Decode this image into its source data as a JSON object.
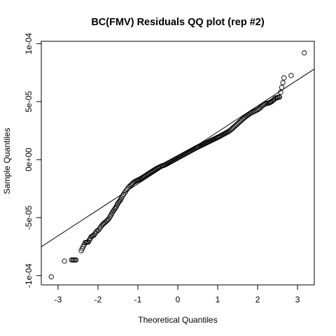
{
  "chart_data": {
    "type": "scatter",
    "title": "BC(FMV) Residuals QQ plot (rep #2)",
    "xlabel": "Theoretical Quantiles",
    "ylabel": "Sample Quantiles",
    "xlim": [
      -3.42,
      3.42
    ],
    "ylim": [
      -0.000108,
      0.000102
    ],
    "xticks": [
      -3,
      -2,
      -1,
      0,
      1,
      2,
      3
    ],
    "xtick_labels": [
      "-3",
      "-2",
      "-1",
      "0",
      "1",
      "2",
      "3"
    ],
    "yticks": [
      -0.0001,
      -5e-05,
      0,
      5e-05,
      0.0001
    ],
    "ytick_labels": [
      "-1e-04",
      "-5e-05",
      "0e+00",
      "5e-05",
      "1e-04"
    ],
    "grid": false,
    "series": [
      {
        "x": [
          -3.17,
          -2.84,
          -2.66,
          -2.55,
          -2.42,
          -2.32,
          -2.24,
          -2.17,
          -2.1,
          -2.04,
          -1.98,
          -1.92,
          -1.87,
          -1.82,
          -1.77,
          -1.72,
          -1.67,
          -1.63,
          -1.58,
          -1.54,
          -1.5,
          -1.45,
          -1.41,
          -1.36,
          -1.3,
          -1.24,
          -1.18,
          -1.1,
          -1.02,
          -0.93,
          -0.84,
          -0.75,
          -0.66,
          -0.57,
          -0.48,
          -0.4,
          -0.32,
          -0.24,
          -0.16,
          -0.08,
          0.0,
          0.08,
          0.16,
          0.24,
          0.32,
          0.4,
          0.48,
          0.57,
          0.66,
          0.75,
          0.84,
          0.93,
          1.02,
          1.1,
          1.18,
          1.26,
          1.34,
          1.42,
          1.5,
          1.58,
          1.66,
          1.74,
          1.82,
          1.88,
          1.94,
          2.0,
          2.06,
          2.12,
          2.18,
          2.24,
          2.3,
          2.37,
          2.45,
          2.55,
          2.66,
          2.84,
          3.17
        ],
        "y": [
          -0.000101,
          -8.75e-05,
          -8.65e-05,
          -8.65e-05,
          -7.85e-05,
          -7.15e-05,
          -7.1e-05,
          -6.65e-05,
          -6.5e-05,
          -6.2e-05,
          -6.05e-05,
          -5.75e-05,
          -5.55e-05,
          -5.4e-05,
          -5.25e-05,
          -5.05e-05,
          -4.75e-05,
          -4.5e-05,
          -4.25e-05,
          -4.05e-05,
          -3.75e-05,
          -3.55e-05,
          -3.3e-05,
          -3e-05,
          -2.7e-05,
          -2.4e-05,
          -2.2e-05,
          -1.95e-05,
          -1.8e-05,
          -1.65e-05,
          -1.45e-05,
          -1.25e-05,
          -1.05e-05,
          -8.5e-06,
          -6.8e-06,
          -5.5e-06,
          -4.5e-06,
          -3e-06,
          -1.5e-06,
          0.0,
          1.5e-06,
          3e-06,
          4.5e-06,
          6e-06,
          7.5e-06,
          9e-06,
          1.05e-05,
          1.2e-05,
          1.35e-05,
          1.5e-05,
          1.65e-05,
          1.8e-05,
          1.95e-05,
          2.1e-05,
          2.25e-05,
          2.4e-05,
          2.6e-05,
          2.85e-05,
          3.1e-05,
          3.35e-05,
          3.6e-05,
          3.8e-05,
          4e-05,
          4.1e-05,
          4.2e-05,
          4.3e-05,
          4.45e-05,
          4.65e-05,
          4.8e-05,
          4.85e-05,
          4.9e-05,
          5.05e-05,
          5.3e-05,
          5.4e-05,
          7.05e-05,
          7.25e-05,
          9.2e-05
        ]
      }
    ],
    "reference_line": {
      "intercept": 1.5e-06,
      "slope": 2.24e-05
    }
  }
}
